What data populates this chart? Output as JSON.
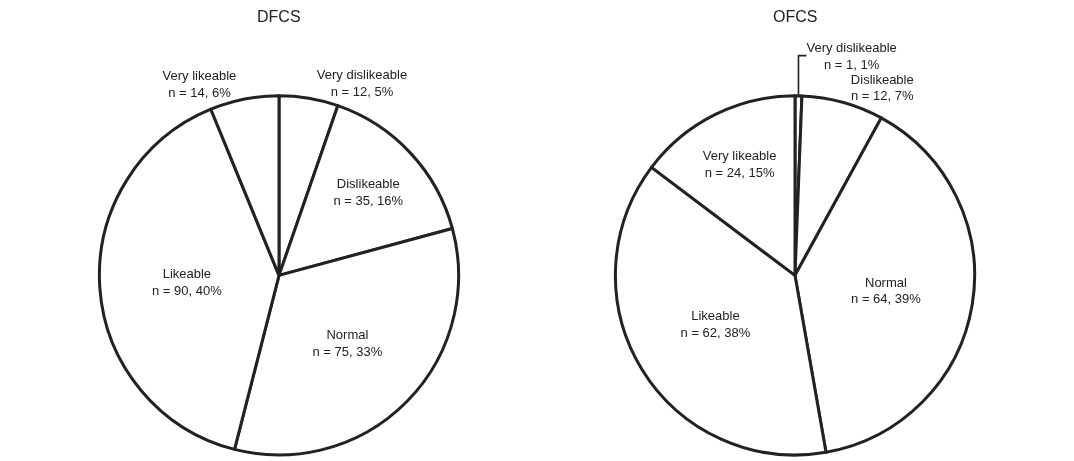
{
  "chart_data": [
    {
      "type": "pie",
      "title": "DFCS",
      "categories": [
        "Very dislikeable",
        "Dislikeable",
        "Normal",
        "Likeable",
        "Very likeable"
      ],
      "values": [
        12,
        35,
        75,
        90,
        14
      ],
      "value_labels": [
        "n = 12, 5%",
        "n = 35, 16%",
        "n = 75, 33%",
        "n = 90, 40%",
        "n = 14, 6%"
      ],
      "colors": [
        "#ffffff",
        "#ffffff",
        "#ffffff",
        "#ffffff",
        "#ffffff"
      ],
      "legend": false
    },
    {
      "type": "pie",
      "title": "OFCS",
      "categories": [
        "Very dislikeable",
        "Dislikeable",
        "Normal",
        "Likeable",
        "Very likeable"
      ],
      "values": [
        1,
        12,
        64,
        62,
        24
      ],
      "value_labels": [
        "n = 1, 1%",
        "n = 12, 7%",
        "n = 64, 39%",
        "n = 62, 38%",
        "n = 24, 15%"
      ],
      "colors": [
        "#ffffff",
        "#ffffff",
        "#ffffff",
        "#ffffff",
        "#ffffff"
      ],
      "legend": false
    }
  ]
}
